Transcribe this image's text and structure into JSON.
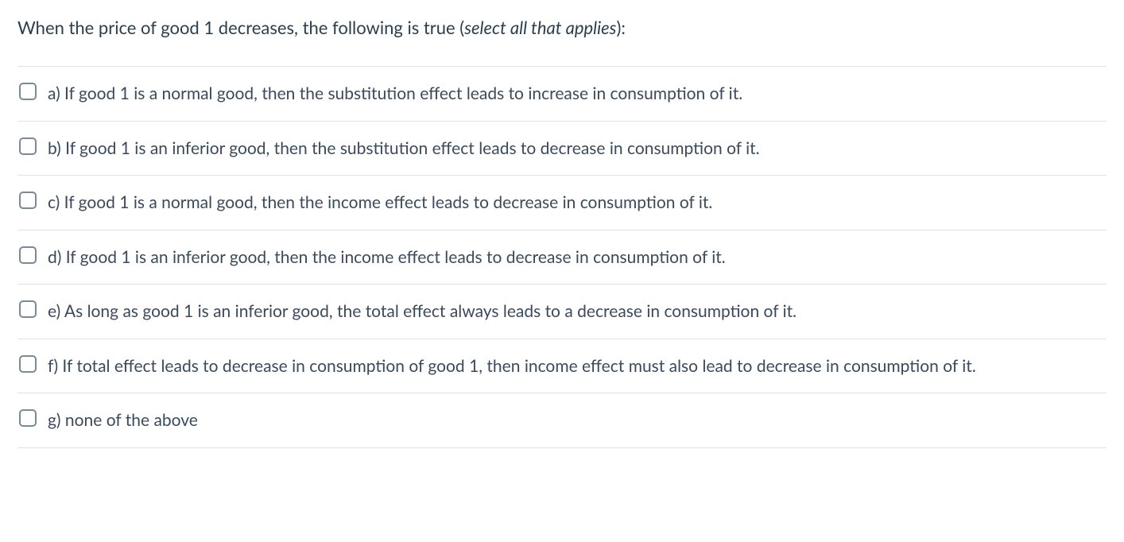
{
  "question": {
    "stem_prefix": "When the price of good 1 decreases, the following is true (",
    "stem_italic": "select all that applies",
    "stem_suffix": "):"
  },
  "options": [
    {
      "letter": "a)",
      "text": "If good 1 is a normal good, then the substitution effect leads to increase in consumption of it."
    },
    {
      "letter": "b)",
      "text": "If good 1 is an inferior good, then the substitution effect leads to decrease in consumption of it."
    },
    {
      "letter": "c)",
      "text": "If good 1 is a normal good, then the income effect leads to decrease in consumption of it."
    },
    {
      "letter": "d)",
      "text": "If good 1 is an inferior good, then the income effect leads to decrease in consumption of it."
    },
    {
      "letter": "e)",
      "text": "As long as good 1 is an inferior good, the total effect always leads to a decrease in consumption of it."
    },
    {
      "letter": "f)",
      "text": "If total effect leads to decrease in consumption of good 1, then income effect must also lead to decrease in consumption of it."
    },
    {
      "letter": "g)",
      "text": "none of the above"
    }
  ],
  "styling": {
    "text_color": "#3a4a5c",
    "stem_color": "#2b3e50",
    "border_color": "#dde3e8",
    "checkbox_border_color": "#7a8a99",
    "background_color": "#ffffff",
    "stem_fontsize": 22,
    "option_fontsize": 21,
    "checkbox_size": 22
  }
}
